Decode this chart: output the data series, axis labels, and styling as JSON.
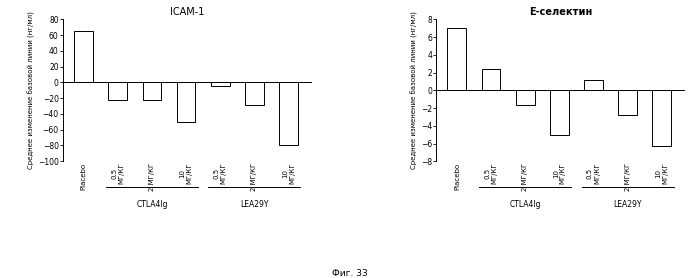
{
  "chart1": {
    "title": "ICAM-1",
    "ylabel": "Среднее изменение базовой линии (нг/мл)",
    "categories": [
      "Placebo",
      "0.5\nМГ/КГ",
      "2 МГ/КГ",
      "10\nМГ/КГ",
      "0.5\nМГ/КГ",
      "2 МГ/КГ",
      "10\nМГ/КГ"
    ],
    "values": [
      65,
      -22,
      -22,
      -50,
      -5,
      -28,
      -80
    ],
    "group_labels": [
      "CTLA4Ig",
      "LEA29Y"
    ],
    "group_ranges": [
      [
        1,
        3
      ],
      [
        4,
        6
      ]
    ],
    "ylim": [
      -100,
      80
    ],
    "yticks": [
      -100,
      -80,
      -60,
      -40,
      -20,
      0,
      20,
      40,
      60,
      80
    ]
  },
  "chart2": {
    "title": "Е-селектин",
    "ylabel": "Среднее изменение базовой линии (нг/мл)",
    "categories": [
      "Placebo",
      "0.5\nМГ/КГ",
      "2 МГ/КГ",
      "10\nМГ/КГ",
      "0.5\nМГ/КГ",
      "2 МГ/КГ",
      "10\nМГ/КГ"
    ],
    "values": [
      7.0,
      2.4,
      -1.7,
      -5.0,
      1.2,
      -2.8,
      -6.3
    ],
    "group_labels": [
      "CTLA4Ig",
      "LEA29Y"
    ],
    "group_ranges": [
      [
        1,
        3
      ],
      [
        4,
        6
      ]
    ],
    "ylim": [
      -8,
      8
    ],
    "yticks": [
      -8,
      -6,
      -4,
      -2,
      0,
      2,
      4,
      6,
      8
    ]
  },
  "bar_color": "#ffffff",
  "bar_edgecolor": "#000000",
  "fig_caption": "Фиг. 33",
  "background_color": "#ffffff",
  "title1_bold": false,
  "title2_bold": true
}
